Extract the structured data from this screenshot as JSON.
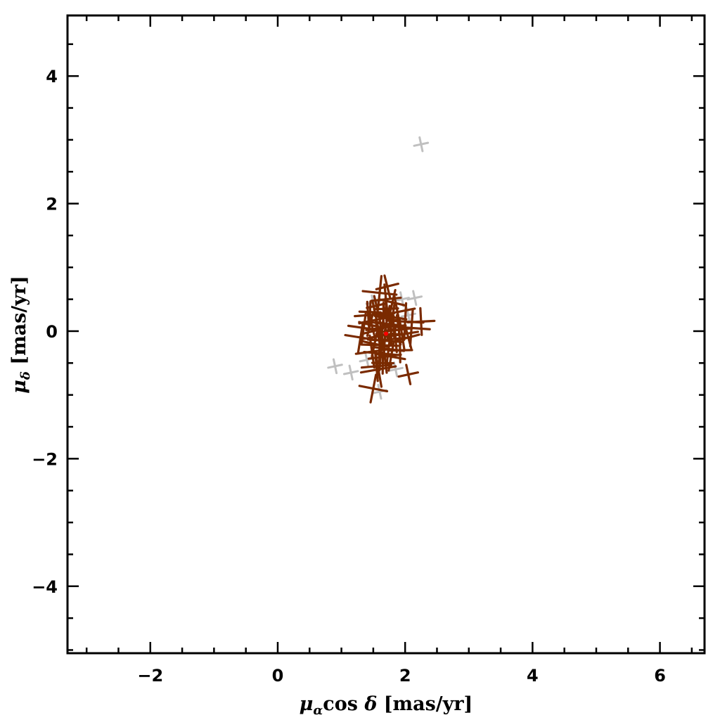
{
  "chart_data": {
    "type": "scatter",
    "title": "",
    "xlabel": "μ_α cos δ  [mas/yr]",
    "ylabel": "μ_δ  [mas/yr]",
    "xlabel_parts": {
      "sym": "μ",
      "sub": "α",
      "mid": "cos ",
      "sym2": "δ",
      "unit": " [mas/yr]"
    },
    "ylabel_parts": {
      "sym": "μ",
      "sub": "δ",
      "unit": " [mas/yr]"
    },
    "xlim": [
      -3.3,
      6.7
    ],
    "ylim": [
      -5.05,
      4.95
    ],
    "xticks": [
      -2,
      0,
      2,
      4,
      6
    ],
    "xtick_labels": [
      "−2",
      "0",
      "2",
      "4",
      "6"
    ],
    "yticks": [
      -4,
      -2,
      0,
      2,
      4
    ],
    "ytick_labels": [
      "−4",
      "−2",
      "0",
      "2",
      "4"
    ],
    "grid": false,
    "legend": "none",
    "colors": {
      "members": "#7a2a00",
      "field": "#c0c0c0",
      "center": "#ff0000",
      "frame": "#000000"
    },
    "series": [
      {
        "role": "field",
        "points": [
          [
            2.25,
            2.93
          ],
          [
            0.9,
            -0.55
          ],
          [
            1.15,
            -0.65
          ],
          [
            1.95,
            0.5
          ],
          [
            2.15,
            0.52
          ],
          [
            1.6,
            -0.95
          ],
          [
            1.85,
            -0.6
          ],
          [
            1.4,
            -0.45
          ],
          [
            2.05,
            0.25
          ],
          [
            1.5,
            0.45
          ]
        ]
      },
      {
        "role": "members",
        "points": [
          [
            1.7,
            0.0
          ],
          [
            1.62,
            0.05
          ],
          [
            1.78,
            -0.05
          ],
          [
            1.65,
            0.12
          ],
          [
            1.75,
            0.1
          ],
          [
            1.58,
            -0.08
          ],
          [
            1.82,
            0.08
          ],
          [
            1.68,
            -0.15
          ],
          [
            1.72,
            0.2
          ],
          [
            1.55,
            0.18
          ],
          [
            1.85,
            -0.12
          ],
          [
            1.6,
            -0.22
          ],
          [
            1.8,
            0.22
          ],
          [
            1.5,
            0.0
          ],
          [
            1.9,
            0.02
          ],
          [
            1.66,
            0.28
          ],
          [
            1.74,
            -0.28
          ],
          [
            1.45,
            0.1
          ],
          [
            1.95,
            -0.05
          ],
          [
            1.7,
            0.35
          ],
          [
            1.62,
            -0.35
          ],
          [
            1.52,
            -0.2
          ],
          [
            1.88,
            0.3
          ],
          [
            1.42,
            0.25
          ],
          [
            2.0,
            0.15
          ],
          [
            1.78,
            -0.4
          ],
          [
            1.55,
            0.4
          ],
          [
            1.7,
            0.5
          ],
          [
            1.65,
            -0.5
          ],
          [
            1.35,
            0.05
          ],
          [
            2.05,
            -0.1
          ],
          [
            1.48,
            -0.32
          ],
          [
            1.92,
            -0.3
          ],
          [
            1.6,
            0.6
          ],
          [
            1.8,
            0.45
          ],
          [
            1.58,
            -0.6
          ],
          [
            2.25,
            0.15
          ],
          [
            2.1,
            0.05
          ],
          [
            1.5,
            -0.9
          ],
          [
            2.05,
            -0.68
          ],
          [
            1.55,
            -0.55
          ],
          [
            1.45,
            0.3
          ],
          [
            1.3,
            -0.1
          ],
          [
            1.72,
            0.7
          ],
          [
            1.68,
            -0.4
          ]
        ]
      },
      {
        "role": "center",
        "points": [
          [
            1.7,
            -0.04
          ]
        ]
      }
    ]
  }
}
